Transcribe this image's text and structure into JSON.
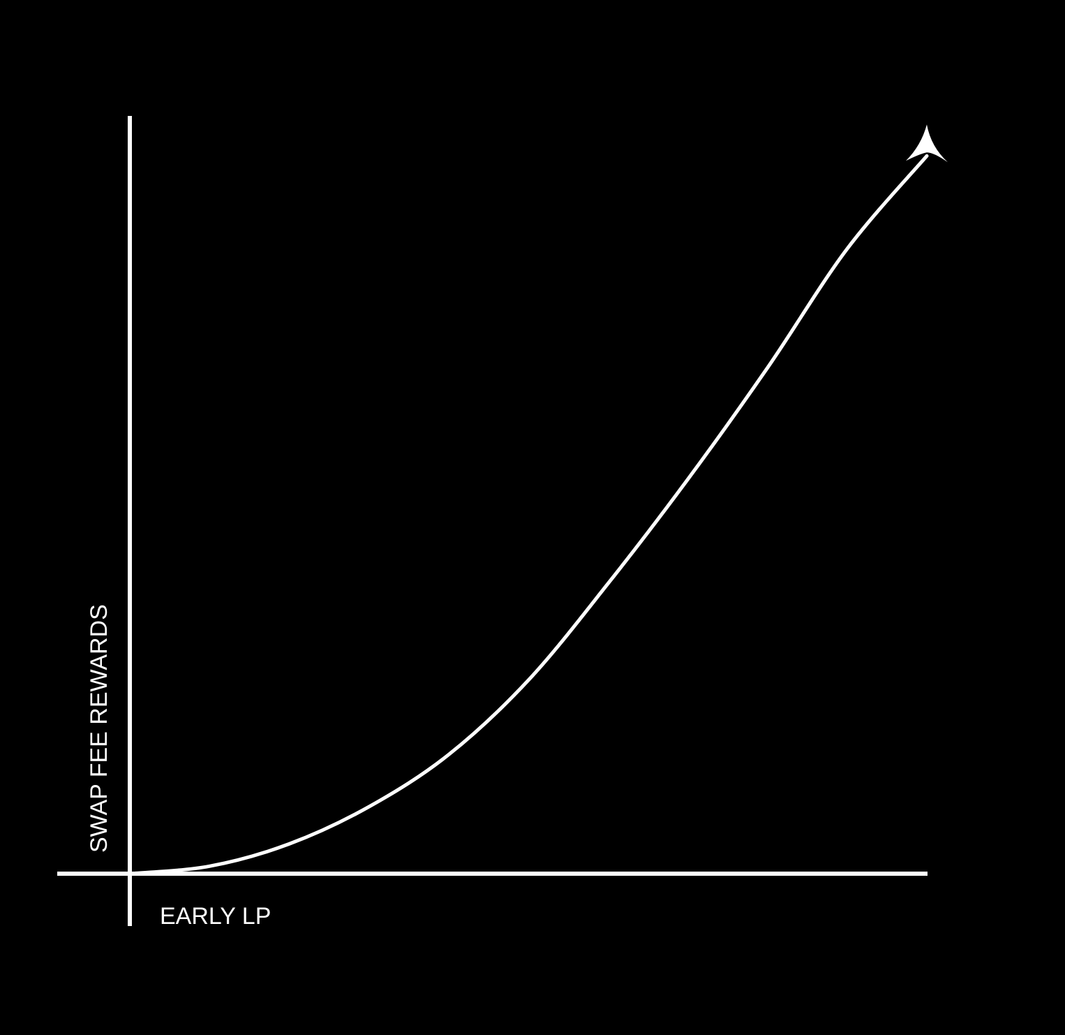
{
  "chart_data": {
    "type": "line",
    "title": "",
    "xlabel": "EARLY LP",
    "ylabel": "SWAP FEE REWARDS",
    "grid": false,
    "legend": "none",
    "show_ticks": false,
    "xlim": [
      0,
      1
    ],
    "ylim": [
      0,
      1
    ],
    "series": [
      {
        "style": "arrow-curve",
        "x": [
          0.0,
          0.1,
          0.2,
          0.3,
          0.4,
          0.5,
          0.6,
          0.7,
          0.8,
          0.9,
          1.0
        ],
        "values": [
          0.0,
          0.01,
          0.04,
          0.09,
          0.16,
          0.26,
          0.39,
          0.53,
          0.68,
          0.84,
          0.965
        ]
      }
    ],
    "colors": {
      "background": "#000000",
      "foreground": "#ffffff"
    }
  }
}
